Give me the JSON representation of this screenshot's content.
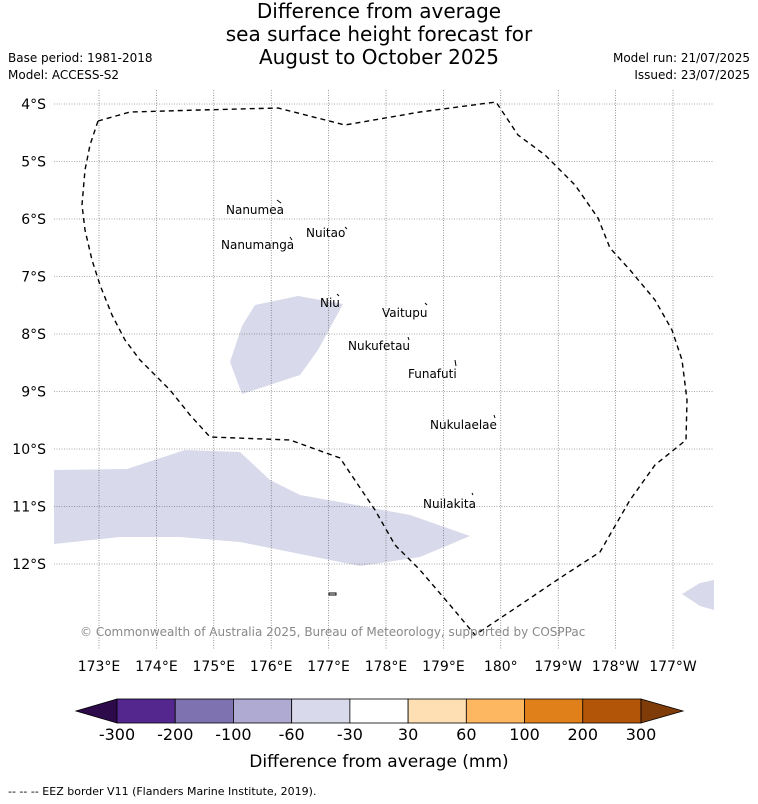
{
  "title": {
    "line1": "Difference from average",
    "line2": "sea surface height forecast for",
    "line3": "August to October 2025"
  },
  "meta_left": {
    "base_period": "Base period: 1981-2018",
    "model": "Model: ACCESS-S2"
  },
  "meta_right": {
    "model_run": "Model run: 21/07/2025",
    "issued": "Issued: 23/07/2025"
  },
  "map": {
    "lat_labels": [
      "4°S",
      "5°S",
      "6°S",
      "7°S",
      "8°S",
      "9°S",
      "10°S",
      "11°S",
      "12°S"
    ],
    "lon_labels": [
      "173°E",
      "174°E",
      "175°E",
      "176°E",
      "177°E",
      "178°E",
      "179°E",
      "180°",
      "179°W",
      "178°W",
      "177°W"
    ],
    "islands": [
      {
        "name": "Nanumea"
      },
      {
        "name": "Nuitao"
      },
      {
        "name": "Nanumanga"
      },
      {
        "name": "Niu"
      },
      {
        "name": "Vaitupu"
      },
      {
        "name": "Nukufetau"
      },
      {
        "name": "Funafuti"
      },
      {
        "name": "Nukulaelae"
      },
      {
        "name": "Nuilakita"
      }
    ],
    "copyright": "© Commonwealth of Australia 2025, Bureau of Meteorology, supported by COSPPac",
    "anomaly_fill_color": "#d8d9ea",
    "anomaly_category": "-60 to -30"
  },
  "colorbar": {
    "title": "Difference from average (mm)",
    "ticks": [
      "-300",
      "-200",
      "-100",
      "-60",
      "-30",
      "30",
      "60",
      "100",
      "200",
      "300"
    ],
    "colors": [
      "#2d0a4a",
      "#54278f",
      "#7f72b0",
      "#aeaad1",
      "#d8d9ea",
      "#ffffff",
      "#fedfb4",
      "#fdb761",
      "#e0801a",
      "#b35508",
      "#7f3b08"
    ]
  },
  "footer": "--  --  -- EEZ border V11 (Flanders Marine Institute, 2019)."
}
